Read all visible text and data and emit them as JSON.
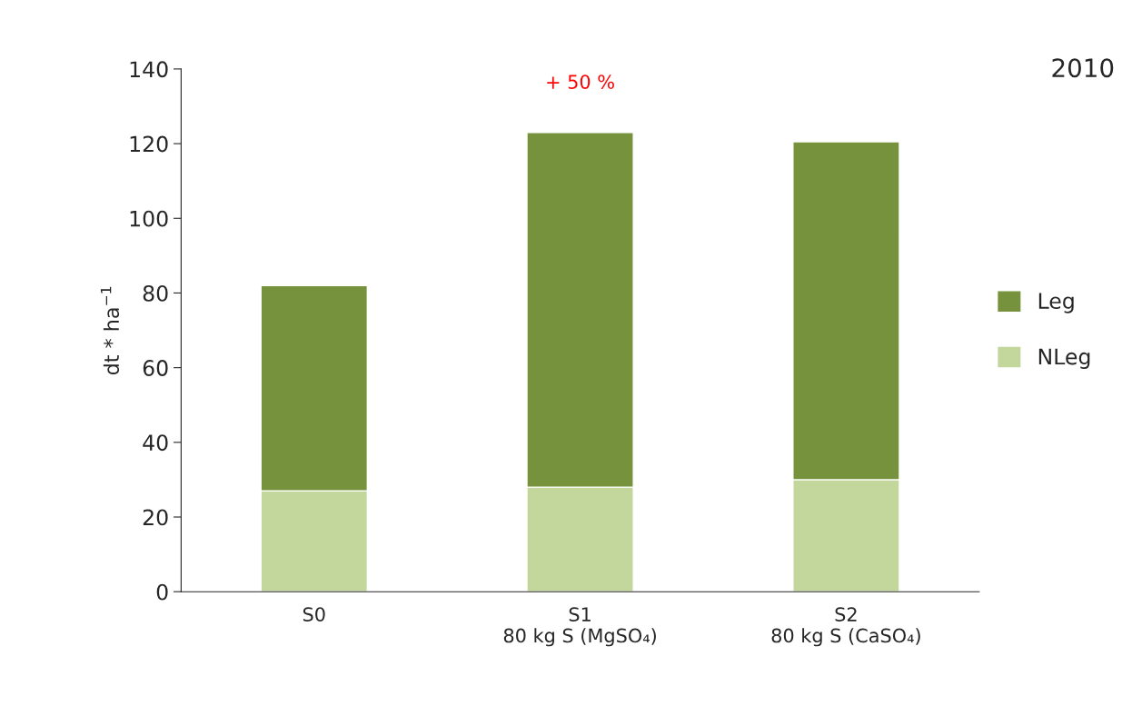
{
  "chart_data": {
    "type": "bar",
    "title": "2010",
    "ylabel": "dt * ha$^{−1}$",
    "categories": [
      "S0",
      "S1\n80 kg S (MgSO₄)",
      "S2\n80 kg S (CaSO₄)"
    ],
    "stacked": true,
    "series": [
      {
        "name": "NLeg",
        "color": "#c3d69b",
        "values": [
          27,
          28,
          30
        ]
      },
      {
        "name": "Leg",
        "color": "#76923c",
        "values": [
          55,
          95,
          90.5
        ]
      }
    ],
    "ylim": [
      0,
      140
    ],
    "yticks": [
      0,
      20,
      40,
      60,
      80,
      100,
      120,
      140
    ],
    "annotations": [
      "+ 50 %"
    ],
    "legend": "right",
    "grid": false
  }
}
